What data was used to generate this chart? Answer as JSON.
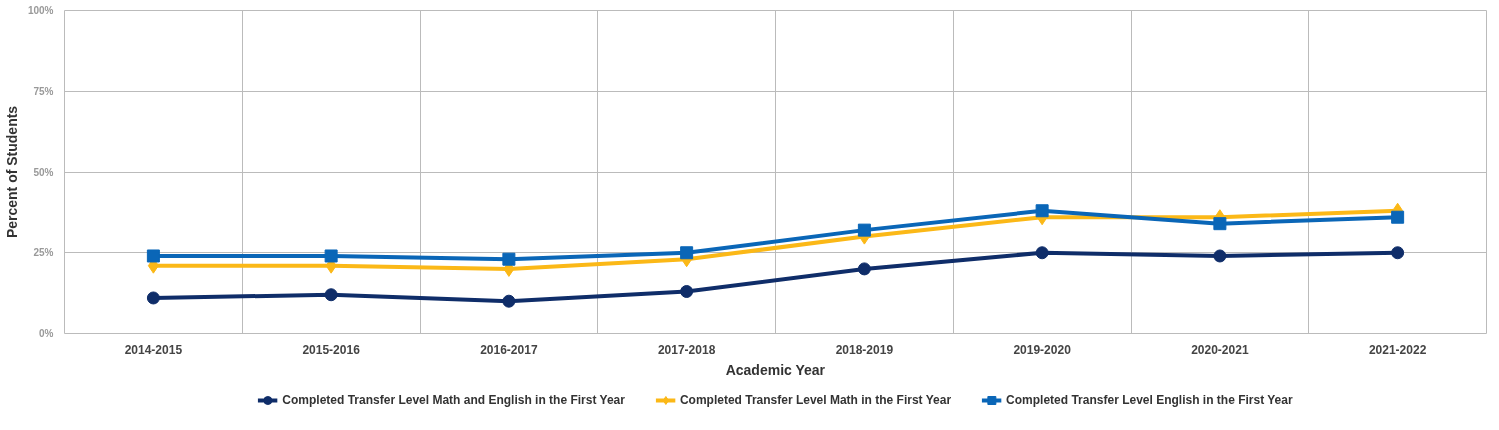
{
  "chart_data": {
    "type": "line",
    "xlabel": "Academic Year",
    "ylabel": "Percent of Students",
    "categories": [
      "2014-2015",
      "2015-2016",
      "2016-2017",
      "2017-2018",
      "2018-2019",
      "2019-2020",
      "2020-2021",
      "2021-2022"
    ],
    "ylim": [
      0,
      100
    ],
    "yticks": [
      {
        "value": 0,
        "label": "0%"
      },
      {
        "value": 25,
        "label": "25%"
      },
      {
        "value": 50,
        "label": "50%"
      },
      {
        "value": 75,
        "label": "75%"
      },
      {
        "value": 100,
        "label": "100%"
      }
    ],
    "grid": true,
    "legend": "bottom",
    "line_style": "solid",
    "series": [
      {
        "name": "Completed Transfer Level Math and English in the First Year",
        "color": "#0f2d69",
        "marker": "circle",
        "values": [
          11,
          12,
          10,
          13,
          20,
          25,
          24,
          25
        ]
      },
      {
        "name": "Completed Transfer Level Math in the First Year",
        "color": "#fbb817",
        "marker": "diamond",
        "values": [
          21,
          21,
          20,
          23,
          30,
          36,
          36,
          38
        ]
      },
      {
        "name": "Completed Transfer Level English in the First Year",
        "color": "#0a66b7",
        "marker": "square",
        "values": [
          24,
          24,
          23,
          25,
          32,
          38,
          34,
          36
        ]
      }
    ]
  }
}
